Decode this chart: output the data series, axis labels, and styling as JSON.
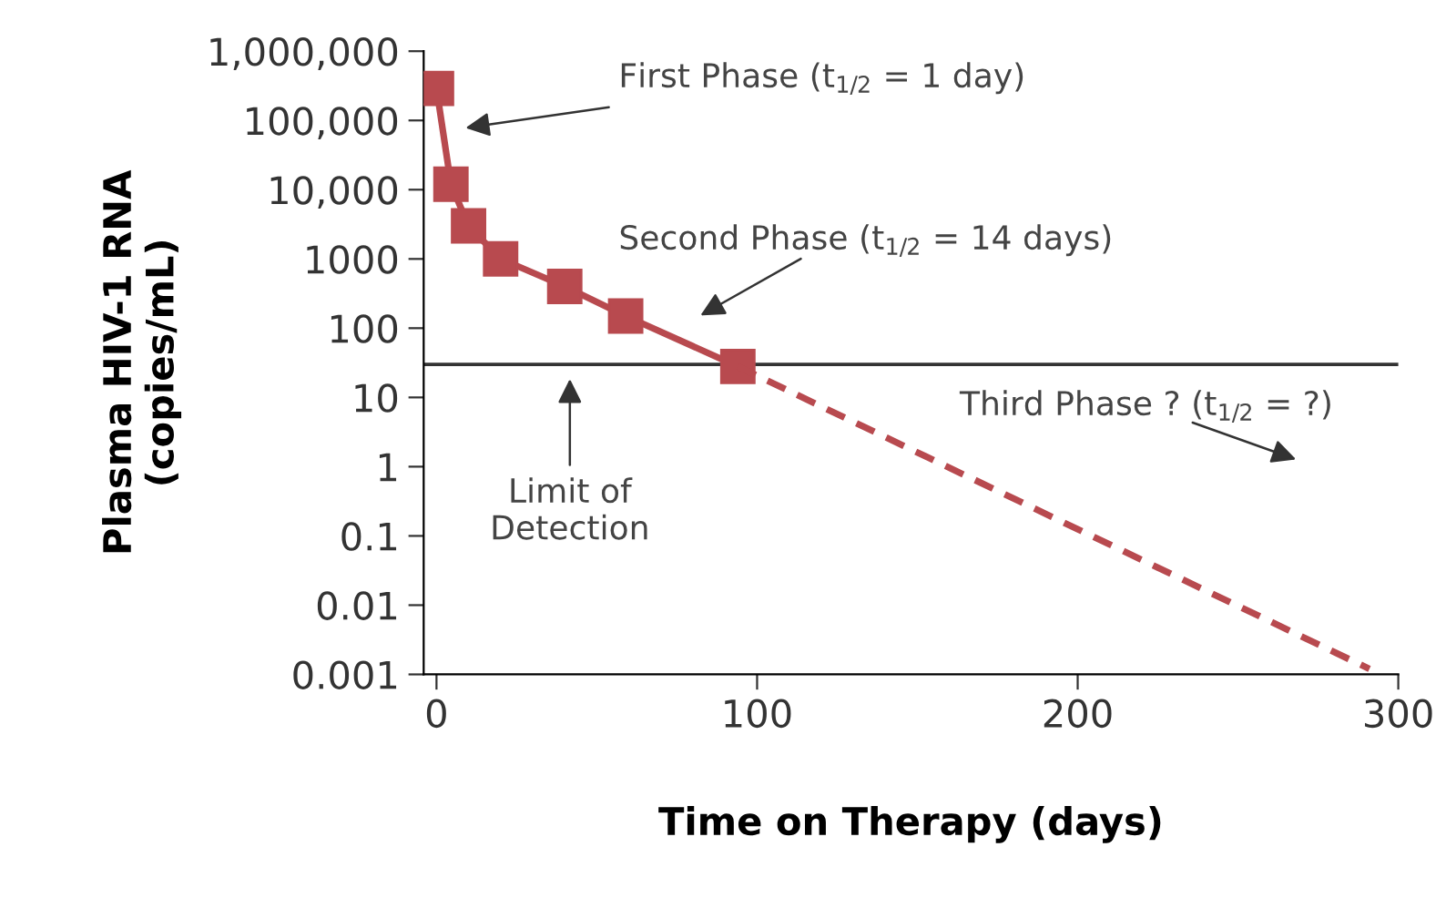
{
  "chart_data": {
    "type": "line",
    "xlabel": "Time on Therapy (days)",
    "ylabel": "Plasma HIV-1 RNA\n(copies/mL)",
    "log": "y",
    "xlim": [
      -4,
      300
    ],
    "xticks": [
      0,
      100,
      200,
      300
    ],
    "ylim": [
      0.001,
      1000000
    ],
    "yticks": [
      {
        "value": 0.001,
        "label": "0.001"
      },
      {
        "value": 0.01,
        "label": "0.01"
      },
      {
        "value": 0.1,
        "label": "0.1"
      },
      {
        "value": 1,
        "label": "1"
      },
      {
        "value": 10,
        "label": "10"
      },
      {
        "value": 100,
        "label": "100"
      },
      {
        "value": 1000,
        "label": "1000"
      },
      {
        "value": 10000,
        "label": "10,000"
      },
      {
        "value": 100000,
        "label": "100,000"
      },
      {
        "value": 1000000,
        "label": "1,000,000"
      }
    ],
    "grid": false,
    "legend": false,
    "series": [
      {
        "color": "#b84a4f",
        "marker": "square",
        "line_style": "solid",
        "x": [
          0,
          4.5,
          10,
          20,
          40,
          59,
          94
        ],
        "values": [
          290000,
          12000,
          3000,
          1000,
          400,
          150,
          28
        ]
      },
      {
        "color": "#b84a4f",
        "marker": "none",
        "line_style": "dashed",
        "x": [
          94,
          291
        ],
        "values": [
          28,
          0.0012
        ]
      }
    ],
    "ref_lines": [
      {
        "axis": "y",
        "value": 30,
        "color": "#333333",
        "line_style": "solid"
      }
    ],
    "annotations": [
      "First Phase (t$_{1/2}$ = 1 day)",
      "Second Phase (t$_{1/2}$ = 14 days)",
      "Limit of\nDetection",
      "Third Phase ? (t$_{1/2}$ = ?)"
    ]
  }
}
